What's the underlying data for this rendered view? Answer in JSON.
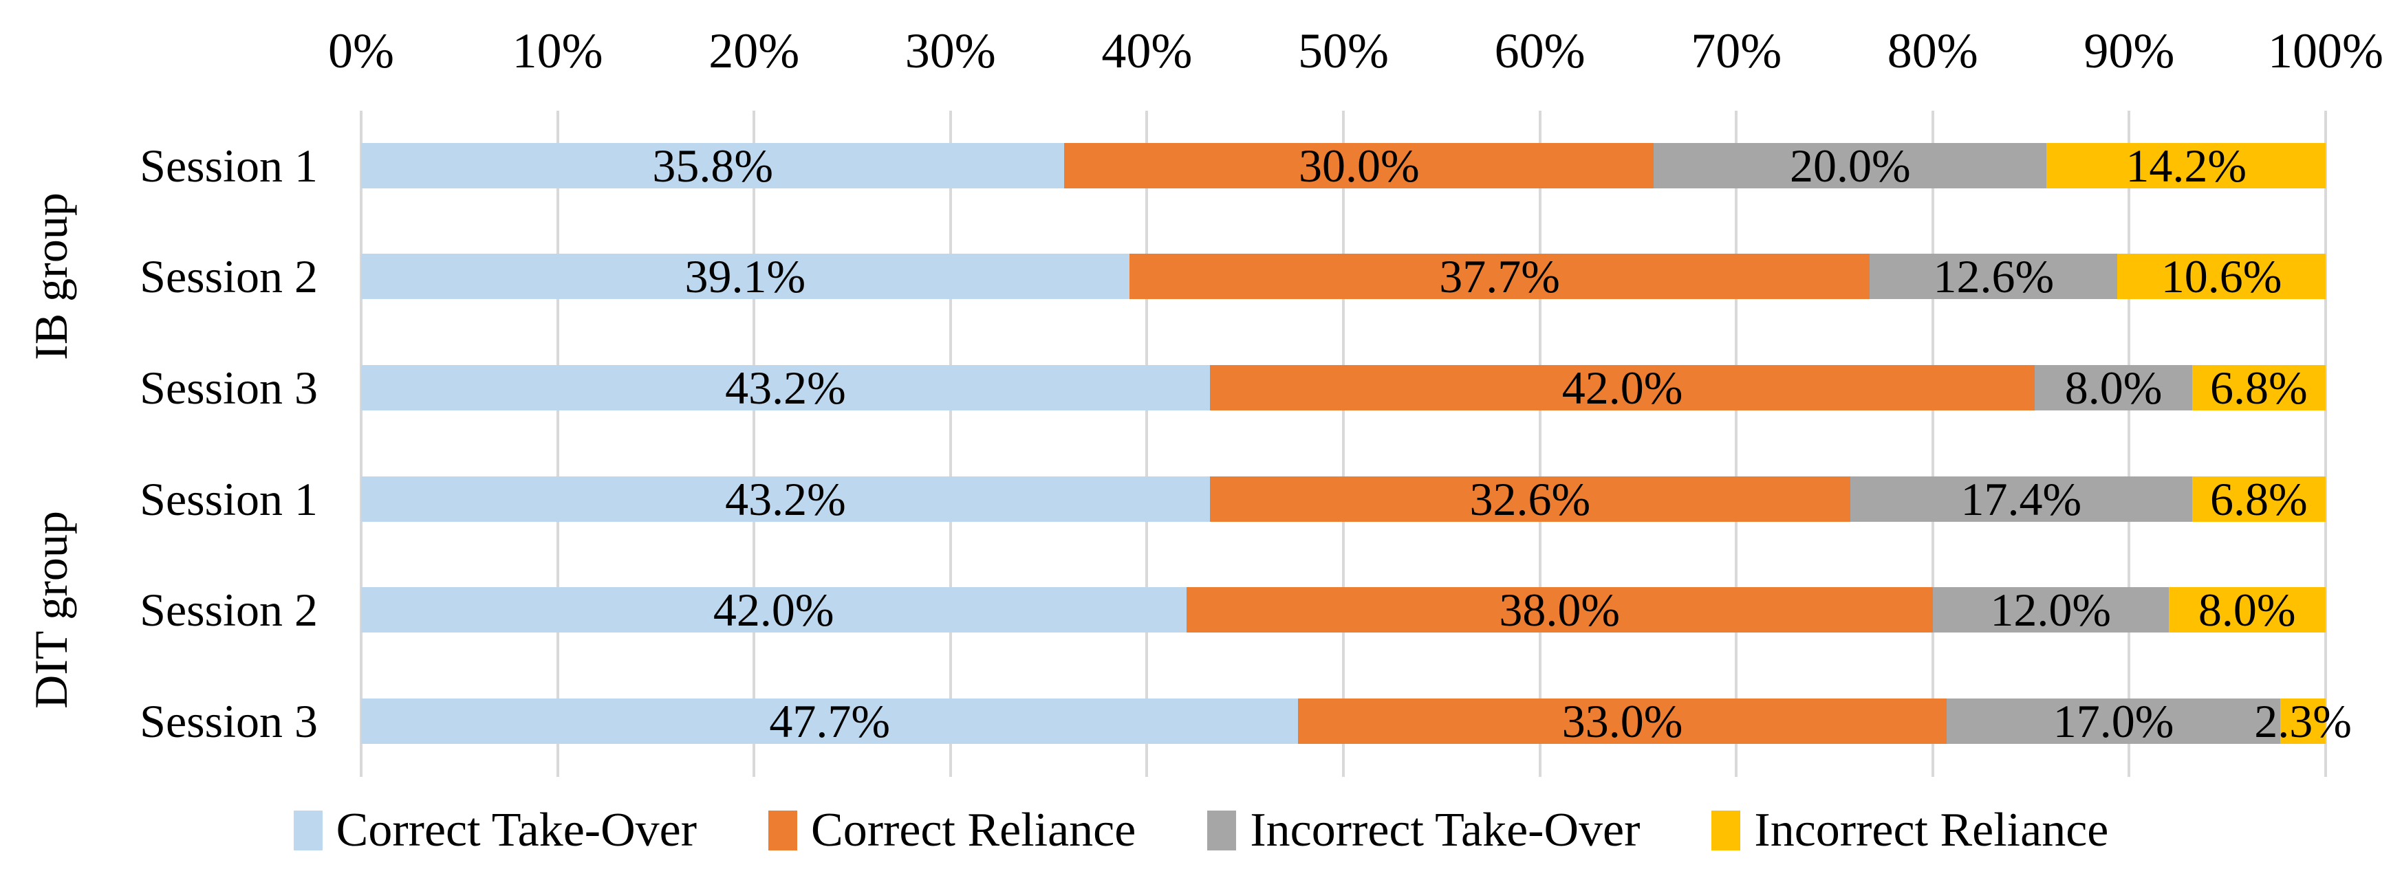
{
  "chart_data": {
    "type": "bar",
    "orientation": "horizontal-stacked",
    "title": "",
    "x_axis": {
      "position": "top",
      "range": [
        0,
        100
      ],
      "ticks": [
        "0%",
        "10%",
        "20%",
        "30%",
        "40%",
        "50%",
        "60%",
        "70%",
        "80%",
        "90%",
        "100%"
      ]
    },
    "grid": true,
    "legend_position": "bottom",
    "groups": [
      {
        "label": "IB group",
        "rows": [
          0,
          1,
          2
        ]
      },
      {
        "label": "DIT group",
        "rows": [
          3,
          4,
          5
        ]
      }
    ],
    "categories": [
      "Session 1",
      "Session 2",
      "Session 3",
      "Session 1",
      "Session 2",
      "Session 3"
    ],
    "series": [
      {
        "name": "Correct Take-Over",
        "color": "#BDD7EE",
        "values": [
          35.8,
          39.1,
          43.2,
          43.2,
          42.0,
          47.7
        ],
        "labels": [
          "35.8%",
          "39.1%",
          "43.2%",
          "43.2%",
          "42.0%",
          "47.7%"
        ]
      },
      {
        "name": "Correct Reliance",
        "color": "#ED7D31",
        "values": [
          30.0,
          37.7,
          42.0,
          32.6,
          38.0,
          33.0
        ],
        "labels": [
          "30.0%",
          "37.7%",
          "42.0%",
          "32.6%",
          "38.0%",
          "33.0%"
        ]
      },
      {
        "name": "Incorrect Take-Over",
        "color": "#A6A6A6",
        "values": [
          20.0,
          12.6,
          8.0,
          17.4,
          12.0,
          17.0
        ],
        "labels": [
          "20.0%",
          "12.6%",
          "8.0%",
          "17.4%",
          "12.0%",
          "17.0%"
        ]
      },
      {
        "name": "Incorrect Reliance",
        "color": "#FFC000",
        "values": [
          14.2,
          10.6,
          6.8,
          6.8,
          8.0,
          2.3
        ],
        "labels": [
          "14.2%",
          "10.6%",
          "6.8%",
          "6.8%",
          "8.0%",
          "2.3%"
        ]
      }
    ],
    "colors": {
      "gridline": "#D9D9D9",
      "label_text": "#000000",
      "background": "#FFFFFF"
    }
  }
}
